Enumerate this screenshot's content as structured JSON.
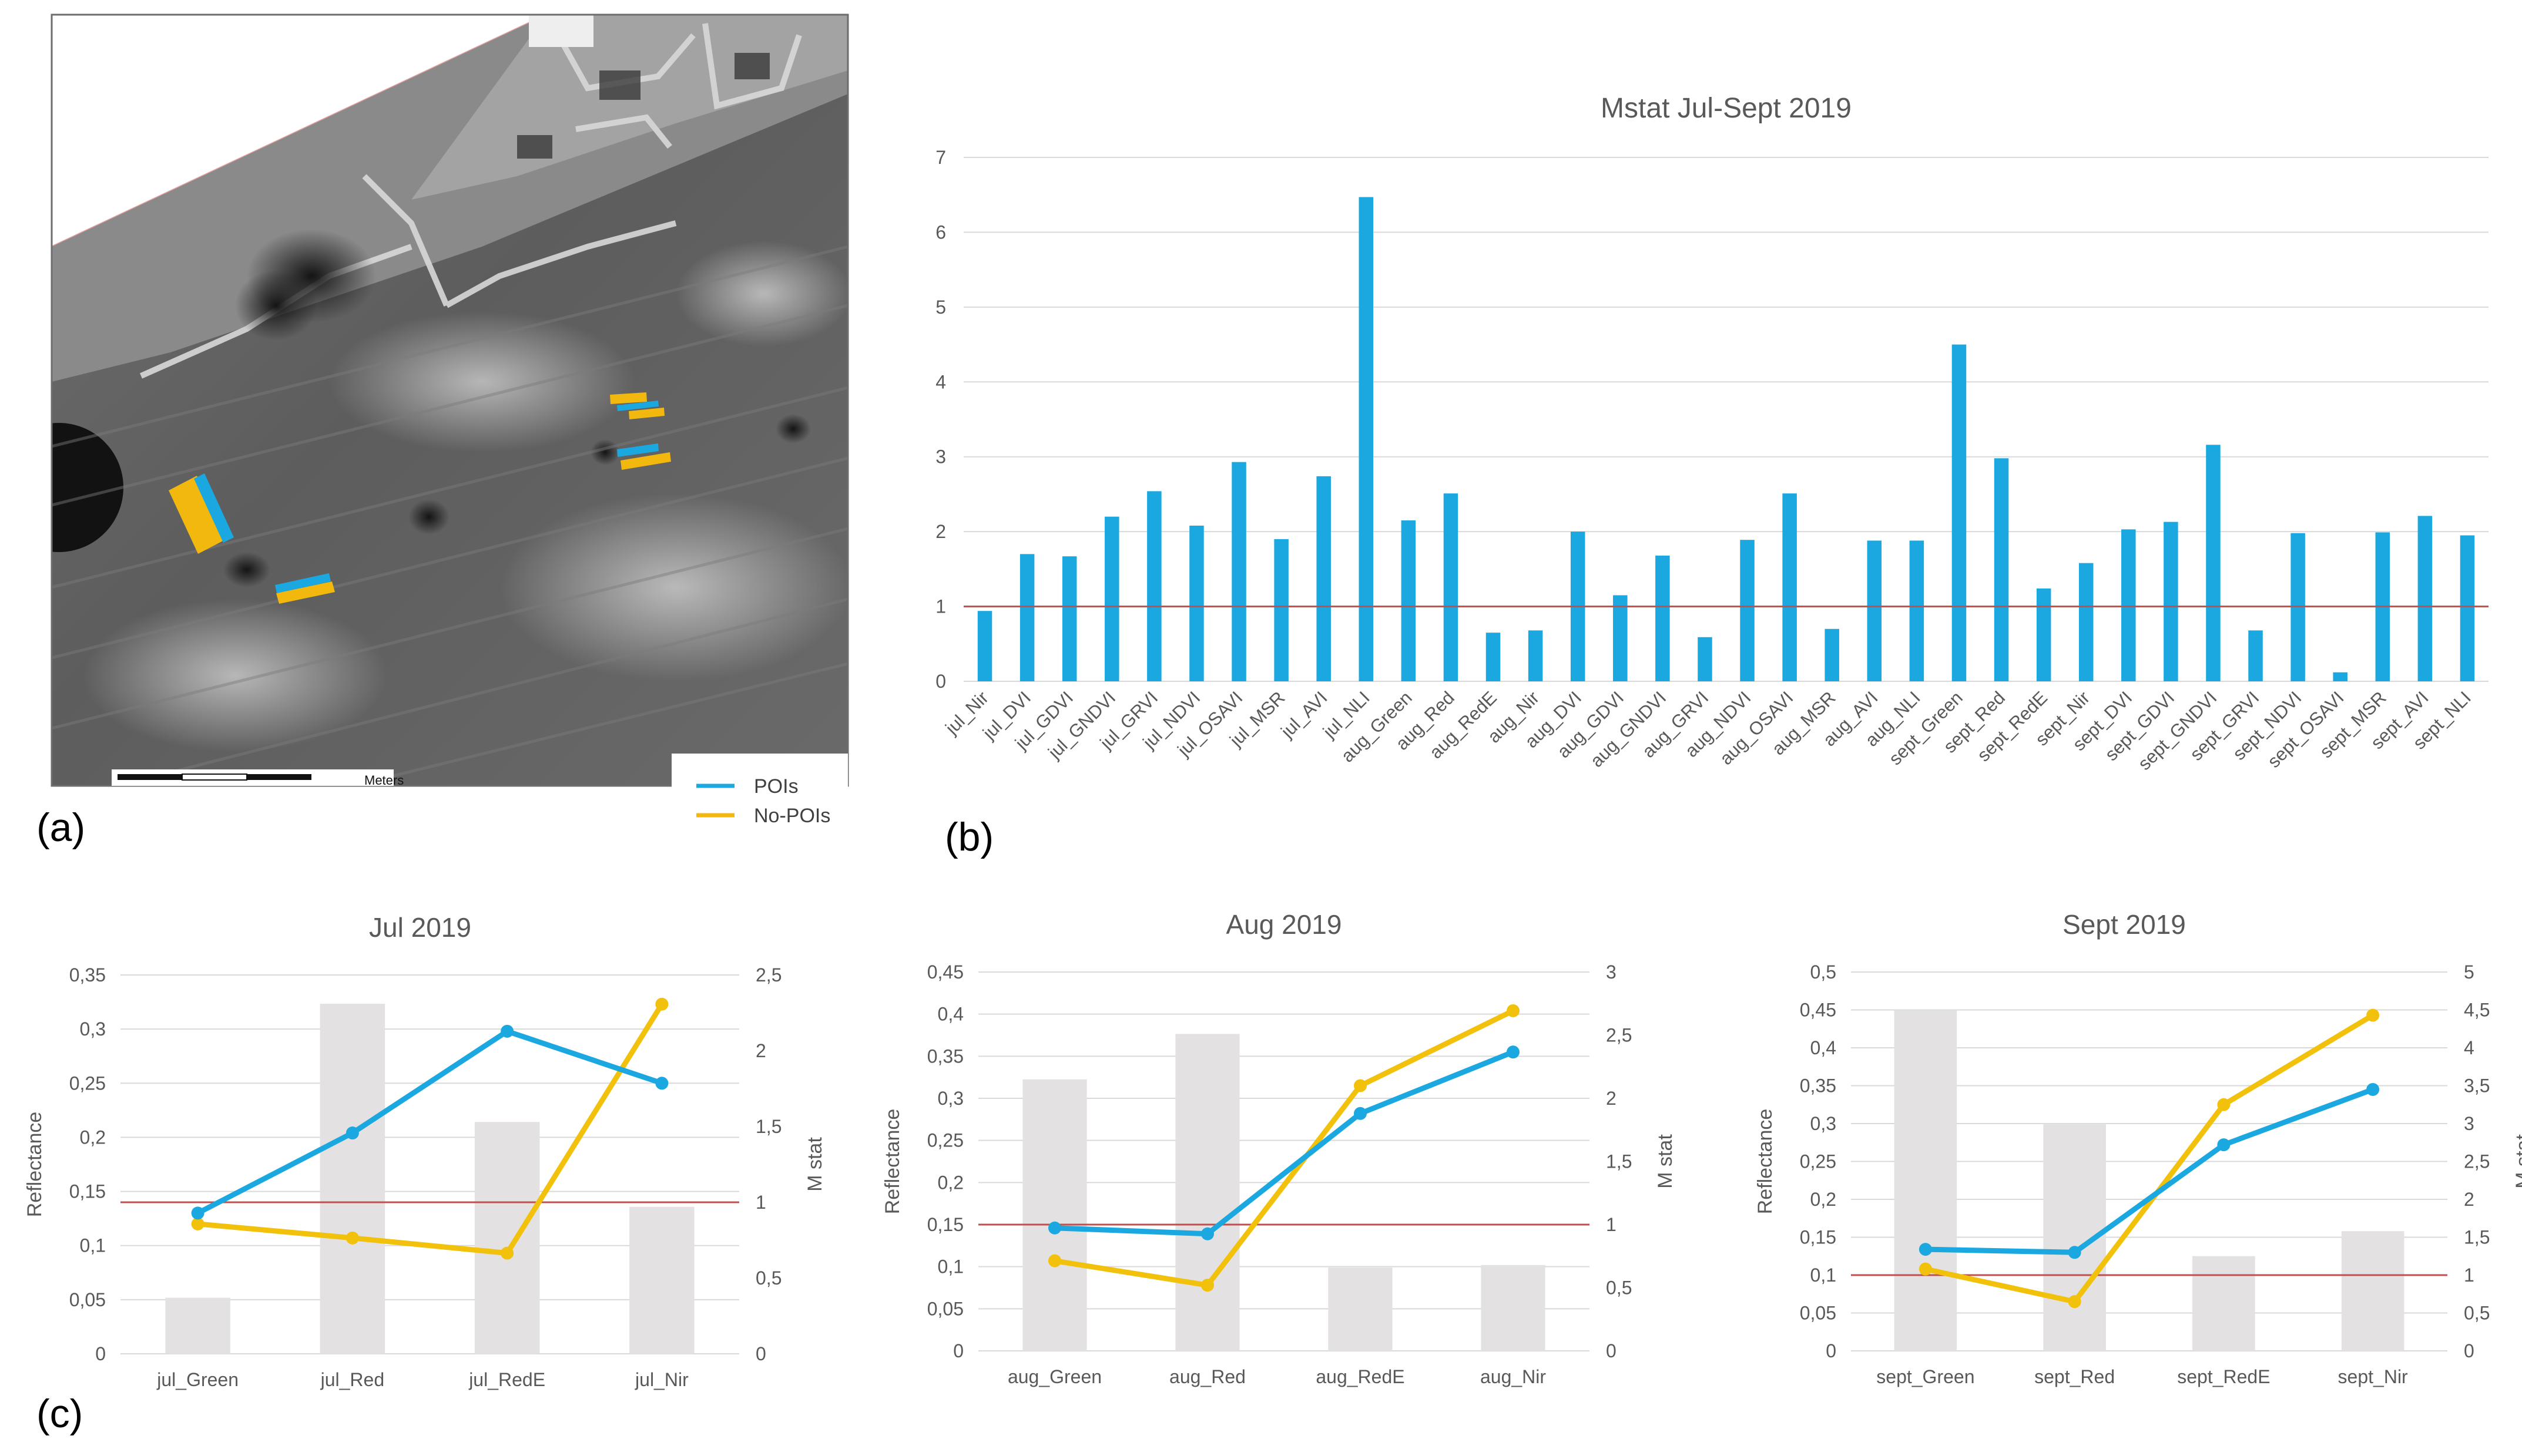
{
  "panels": {
    "a": "(a)",
    "b": "(b)",
    "c": "(c)"
  },
  "map": {
    "legend": [
      {
        "label": "POIs",
        "color": "#1BA8E0"
      },
      {
        "label": "No-POIs",
        "color": "#F2B80E"
      }
    ],
    "scale_label": "Meters"
  },
  "colors": {
    "bar_blue": "#1BA8E0",
    "bar_grey": "#E3E1E1",
    "line_blue": "#1BA8E0",
    "line_yellow": "#F2C10C",
    "threshold": "#C0504D",
    "grid": "#D9D9D9",
    "text": "#595959"
  },
  "chart_data": [
    {
      "id": "b",
      "type": "bar",
      "title": "Mstat Jul-Sept 2019",
      "categories": [
        "jul_Nir",
        "jul_DVI",
        "jul_GDVI",
        "jul_GNDVI",
        "jul_GRVI",
        "jul_NDVI",
        "jul_OSAVI",
        "jul_MSR",
        "jul_AVI",
        "jul_NLI",
        "aug_Green",
        "aug_Red",
        "aug_RedE",
        "aug_Nir",
        "aug_DVI",
        "aug_GDVI",
        "aug_GNDVI",
        "aug_GRVI",
        "aug_NDVI",
        "aug_OSAVI",
        "aug_MSR",
        "aug_AVI",
        "aug_NLI",
        "sept_Green",
        "sept_Red",
        "sept_RedE",
        "sept_Nir",
        "sept_DVI",
        "sept_GDVI",
        "sept_GNDVI",
        "sept_GRVI",
        "sept_NDVI",
        "sept_OSAVI",
        "sept_MSR",
        "sept_AVI",
        "sept_NLI"
      ],
      "values": [
        0.94,
        1.7,
        1.67,
        2.2,
        2.54,
        2.08,
        2.93,
        1.9,
        2.74,
        6.47,
        2.15,
        2.51,
        0.65,
        0.68,
        2.0,
        1.15,
        1.68,
        0.59,
        1.89,
        2.51,
        0.7,
        1.88,
        1.88,
        4.5,
        2.98,
        1.24,
        1.58,
        2.03,
        2.13,
        3.16,
        0.68,
        1.98,
        0.12,
        1.99,
        2.21,
        1.95
      ],
      "ylim": [
        0,
        7
      ],
      "yticks": [
        "0",
        "1",
        "2",
        "3",
        "4",
        "5",
        "6",
        "7"
      ],
      "threshold": 1
    },
    {
      "id": "c1",
      "type": "bar+line",
      "title": "Jul 2019",
      "categories": [
        "jul_Green",
        "jul_Red",
        "jul_RedE",
        "jul_Nir"
      ],
      "ylabel": "Reflectance",
      "y2label": "M stat",
      "ylim": [
        0,
        0.35
      ],
      "yticks": [
        "0",
        "0,05",
        "0,1",
        "0,15",
        "0,2",
        "0,25",
        "0,3",
        "0,35"
      ],
      "y2lim": [
        0,
        2.5
      ],
      "y2ticks": [
        "0",
        "0,5",
        "1",
        "1,5",
        "2",
        "2,5"
      ],
      "mstat": [
        0.37,
        2.31,
        1.53,
        0.97
      ],
      "pois": [
        0.13,
        0.204,
        0.298,
        0.25
      ],
      "no_pois": [
        0.12,
        0.107,
        0.093,
        0.323
      ],
      "threshold": 1
    },
    {
      "id": "c2",
      "type": "bar+line",
      "title": "Aug 2019",
      "categories": [
        "aug_Green",
        "aug_Red",
        "aug_RedE",
        "aug_Nir"
      ],
      "ylabel": "Reflectance",
      "y2label": "M stat",
      "ylim": [
        0,
        0.45
      ],
      "yticks": [
        "0",
        "0,05",
        "0,1",
        "0,15",
        "0,2",
        "0,25",
        "0,3",
        "0,35",
        "0,4",
        "0,45"
      ],
      "y2lim": [
        0,
        3
      ],
      "y2ticks": [
        "0",
        "0,5",
        "1",
        "1,5",
        "2",
        "2,5",
        "3"
      ],
      "mstat": [
        2.15,
        2.51,
        0.66,
        0.68
      ],
      "pois": [
        0.146,
        0.139,
        0.282,
        0.355
      ],
      "no_pois": [
        0.107,
        0.078,
        0.315,
        0.404
      ],
      "threshold": 1
    },
    {
      "id": "c3",
      "type": "bar+line",
      "title": "Sept 2019",
      "categories": [
        "sept_Green",
        "sept_Red",
        "sept_RedE",
        "sept_Nir"
      ],
      "ylabel": "Reflectance",
      "y2label": "M stat",
      "ylim": [
        0,
        0.5
      ],
      "yticks": [
        "0",
        "0,05",
        "0,1",
        "0,15",
        "0,2",
        "0,25",
        "0,3",
        "0,35",
        "0,4",
        "0,45",
        "0,5"
      ],
      "y2lim": [
        0,
        5
      ],
      "y2ticks": [
        "0",
        "0,5",
        "1",
        "1,5",
        "2",
        "2,5",
        "3",
        "3,5",
        "4",
        "4,5",
        "5"
      ],
      "mstat": [
        4.5,
        3.0,
        1.25,
        1.58
      ],
      "pois": [
        0.134,
        0.13,
        0.272,
        0.345
      ],
      "no_pois": [
        0.108,
        0.065,
        0.325,
        0.443
      ],
      "threshold": 1
    }
  ]
}
